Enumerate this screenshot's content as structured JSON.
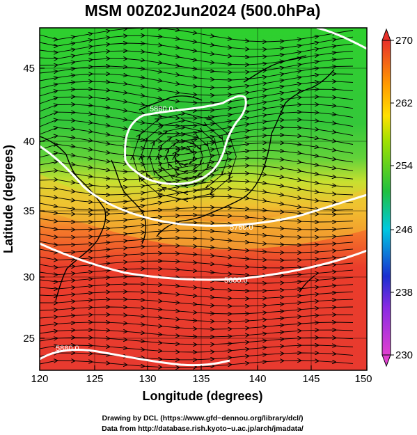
{
  "title": "MSM 00Z02Jun2024 (500.0hPa)",
  "x_axis": {
    "label": "Longitude (degrees)",
    "ticks": [
      "120",
      "125",
      "130",
      "135",
      "140",
      "145",
      "150"
    ],
    "range": [
      120,
      150
    ]
  },
  "y_axis": {
    "label": "Latitude  (degrees)",
    "ticks": [
      "25",
      "30",
      "35",
      "40",
      "45"
    ],
    "range": [
      22.4,
      47.6
    ]
  },
  "colorbar": {
    "ticks": [
      "270",
      "262",
      "254",
      "246",
      "238",
      "230"
    ],
    "range": [
      230,
      270
    ],
    "colors": [
      "#e040d0",
      "#8a2be2",
      "#1a2fd0",
      "#00c8e0",
      "#20c040",
      "#a0e000",
      "#ffe000",
      "#ff9a00",
      "#ff3a2a",
      "#e8302a"
    ]
  },
  "contours": [
    {
      "label": "5880.0",
      "value": 5880
    },
    {
      "label": "5760.0",
      "value": 5760
    },
    {
      "label": "5600.0",
      "value": 5600
    },
    {
      "label": "5880.0",
      "value": 5880
    }
  ],
  "credits": {
    "line1": "Drawing by DCL (https://www.gfd−dennou.org/library/dcl/)",
    "line2": "Data from http://database.rish.kyoto−u.ac.jp/arch/jmadata/"
  },
  "colors": {
    "frame": "#000000",
    "contour": "#ffffff",
    "streamline": "#000000"
  }
}
